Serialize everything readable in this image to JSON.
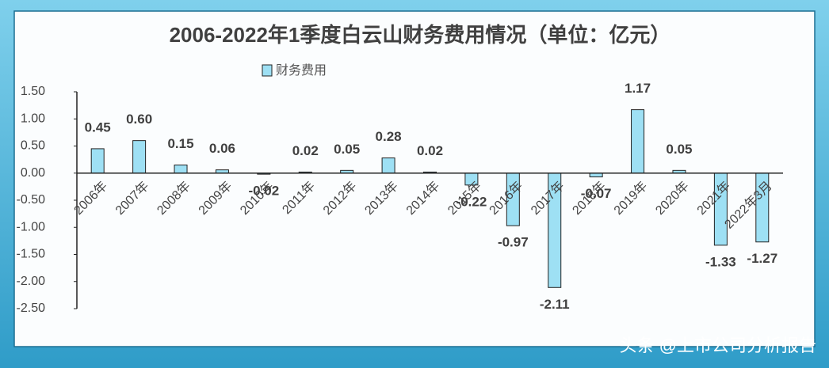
{
  "chart_data": {
    "type": "bar",
    "title": "2006-2022年1季度白云山财务费用情况（单位：亿元）",
    "categories": [
      "2006年",
      "2007年",
      "2008年",
      "2009年",
      "2010年",
      "2011年",
      "2012年",
      "2013年",
      "2014年",
      "2015年",
      "2016年",
      "2017年",
      "2018年",
      "2019年",
      "2020年",
      "2021年",
      "2022年3月"
    ],
    "series": [
      {
        "name": "财务费用",
        "color": "#9ee0f4",
        "values": [
          0.45,
          0.6,
          0.15,
          0.06,
          -0.02,
          0.02,
          0.05,
          0.28,
          0.02,
          -0.22,
          -0.97,
          -2.11,
          -0.07,
          1.17,
          0.05,
          -1.33,
          -1.27
        ],
        "value_labels": [
          "0.45",
          "0.60",
          "0.15",
          "0.06",
          "-0.02",
          "0.02",
          "0.05",
          "0.28",
          "0.02",
          "-0.22",
          "-0.97",
          "-2.11",
          "-0.07",
          "1.17",
          "0.05",
          "-1.33",
          "-1.27"
        ]
      }
    ],
    "ylim": [
      -2.5,
      1.5
    ],
    "yticks": [
      {
        "value": 1.5,
        "label": "1.50"
      },
      {
        "value": 1,
        "label": "1.00"
      },
      {
        "value": 0.5,
        "label": "0.50"
      },
      {
        "value": 0,
        "label": "0.00"
      },
      {
        "value": -0.5,
        "label": "-0.50"
      },
      {
        "value": -1,
        "label": "-1.00"
      },
      {
        "value": -1.5,
        "label": "-1.50"
      },
      {
        "value": -2,
        "label": "-2.00"
      },
      {
        "value": -2.5,
        "label": "-2.50"
      }
    ],
    "grid": false,
    "legend": "top"
  },
  "watermark": "头条 @上市公司分析报告"
}
